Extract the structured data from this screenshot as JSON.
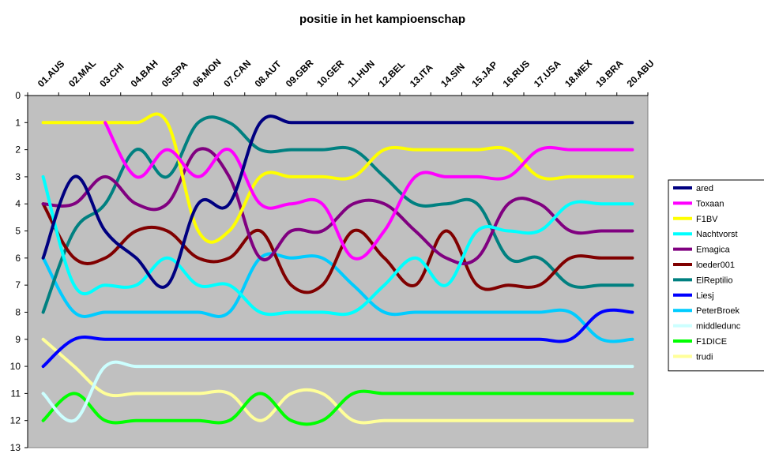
{
  "chart_data": {
    "type": "line",
    "title": "positie in het kampioenschap",
    "xlabel": "",
    "ylabel": "",
    "categories": [
      "01.AUS",
      "02.MAL",
      "03.CHI",
      "04.BAH",
      "05.SPA",
      "06.MON",
      "07.CAN",
      "08.AUT",
      "09.GBR",
      "10.GER",
      "11.HUN",
      "12.BEL",
      "13.ITA",
      "14.SIN",
      "15.JAP",
      "16.RUS",
      "17.USA",
      "18.MEX",
      "19.BRA",
      "20.ABU"
    ],
    "y_ticks": [
      "0",
      "1",
      "2",
      "3",
      "4",
      "5",
      "6",
      "7",
      "8",
      "9",
      "10",
      "11",
      "12",
      "13"
    ],
    "ylim": [
      0,
      13
    ],
    "y_inverted": true,
    "grid": false,
    "plot_background": "#c0c0c0",
    "legend_position": "right",
    "series": [
      {
        "name": "ared",
        "color": "#000080",
        "values": [
          6,
          3,
          5,
          6,
          7,
          4,
          4,
          1,
          1,
          1,
          1,
          1,
          1,
          1,
          1,
          1,
          1,
          1,
          1,
          1
        ]
      },
      {
        "name": "Toxaan",
        "color": "#ff00ff",
        "values": [
          null,
          null,
          1,
          3,
          2,
          3,
          2,
          4,
          4,
          4,
          6,
          5,
          3,
          3,
          3,
          3,
          2,
          2,
          2,
          2
        ]
      },
      {
        "name": "F1BV",
        "color": "#ffff00",
        "values": [
          1,
          1,
          1,
          1,
          1,
          5,
          5,
          3,
          3,
          3,
          3,
          2,
          2,
          2,
          2,
          2,
          3,
          3,
          3,
          3
        ]
      },
      {
        "name": "Nachtvorst",
        "color": "#00ffff",
        "values": [
          3,
          7,
          7,
          7,
          6,
          7,
          7,
          8,
          8,
          8,
          8,
          7,
          6,
          7,
          5,
          5,
          5,
          4,
          4,
          4
        ]
      },
      {
        "name": "Emagica",
        "color": "#800080",
        "values": [
          4,
          4,
          3,
          4,
          4,
          2,
          3,
          6,
          5,
          5,
          4,
          4,
          5,
          6,
          6,
          4,
          4,
          5,
          5,
          5
        ]
      },
      {
        "name": "loeder001",
        "color": "#800000",
        "values": [
          4,
          6,
          6,
          5,
          5,
          6,
          6,
          5,
          7,
          7,
          5,
          6,
          7,
          5,
          7,
          7,
          7,
          6,
          6,
          6
        ]
      },
      {
        "name": "ElReptilio",
        "color": "#008080",
        "values": [
          8,
          5,
          4,
          2,
          3,
          1,
          1,
          2,
          2,
          2,
          2,
          3,
          4,
          4,
          4,
          6,
          6,
          7,
          7,
          7
        ]
      },
      {
        "name": "Liesj",
        "color": "#0000ff",
        "values": [
          10,
          9,
          9,
          9,
          9,
          9,
          9,
          9,
          9,
          9,
          9,
          9,
          9,
          9,
          9,
          9,
          9,
          9,
          8,
          8
        ]
      },
      {
        "name": "PeterBroek",
        "color": "#00ccff",
        "values": [
          6,
          8,
          8,
          8,
          8,
          8,
          8,
          6,
          6,
          6,
          7,
          8,
          8,
          8,
          8,
          8,
          8,
          8,
          9,
          9
        ]
      },
      {
        "name": "middledunc",
        "color": "#ccffff",
        "values": [
          11,
          12,
          10,
          10,
          10,
          10,
          10,
          10,
          10,
          10,
          10,
          10,
          10,
          10,
          10,
          10,
          10,
          10,
          10,
          10
        ]
      },
      {
        "name": "F1DICE",
        "color": "#00ff00",
        "values": [
          12,
          11,
          12,
          12,
          12,
          12,
          12,
          11,
          12,
          12,
          11,
          11,
          11,
          11,
          11,
          11,
          11,
          11,
          11,
          11
        ]
      },
      {
        "name": "trudi",
        "color": "#ffff99",
        "values": [
          9,
          10,
          11,
          11,
          11,
          11,
          11,
          12,
          11,
          11,
          12,
          12,
          12,
          12,
          12,
          12,
          12,
          12,
          12,
          12
        ]
      }
    ]
  }
}
